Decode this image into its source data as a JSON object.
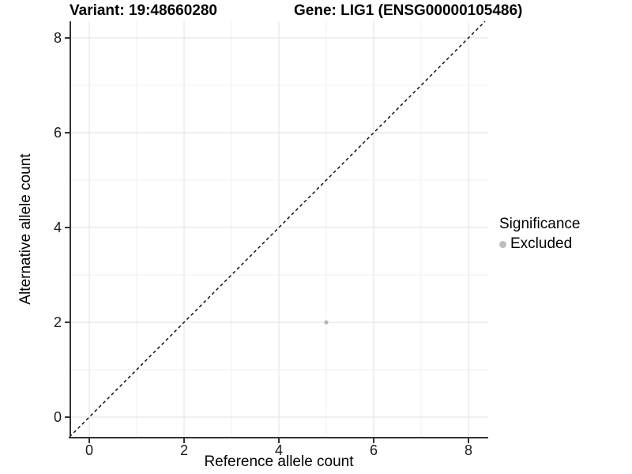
{
  "header": {
    "title_left": "Variant: 19:48660280",
    "title_right": "Gene: LIG1 (ENSG00000105486)"
  },
  "chart_data": {
    "type": "scatter",
    "title_left": "Variant: 19:48660280",
    "title_right": "Gene: LIG1 (ENSG00000105486)",
    "xlabel": "Reference allele count",
    "ylabel": "Alternative allele count",
    "xlim": [
      -0.42,
      8.42
    ],
    "ylim": [
      -0.42,
      8.42
    ],
    "x_ticks": [
      0,
      2,
      4,
      6,
      8
    ],
    "y_ticks": [
      0,
      2,
      4,
      6,
      8
    ],
    "x_minor_ticks": [
      1,
      3,
      5,
      7
    ],
    "y_minor_ticks": [
      1,
      3,
      5,
      7
    ],
    "grid": true,
    "reference_line": {
      "equation": "y = x",
      "style": "dashed",
      "color": "#000000"
    },
    "series": [
      {
        "name": "Excluded",
        "marker": "circle",
        "color": "#b5b5b5",
        "points": [
          {
            "x": 5,
            "y": 2
          }
        ]
      }
    ],
    "legend": {
      "title": "Significance",
      "position": "right",
      "entries": [
        {
          "label": "Excluded",
          "marker": "circle",
          "color": "#bdbdbd"
        }
      ]
    }
  },
  "colors": {
    "background": "#ffffff",
    "axis_line": "#333333",
    "grid_major": "#e5e5e5",
    "grid_minor": "#f2f2f2",
    "tick_text": "#1a1a1a",
    "title_text": "#000000"
  }
}
